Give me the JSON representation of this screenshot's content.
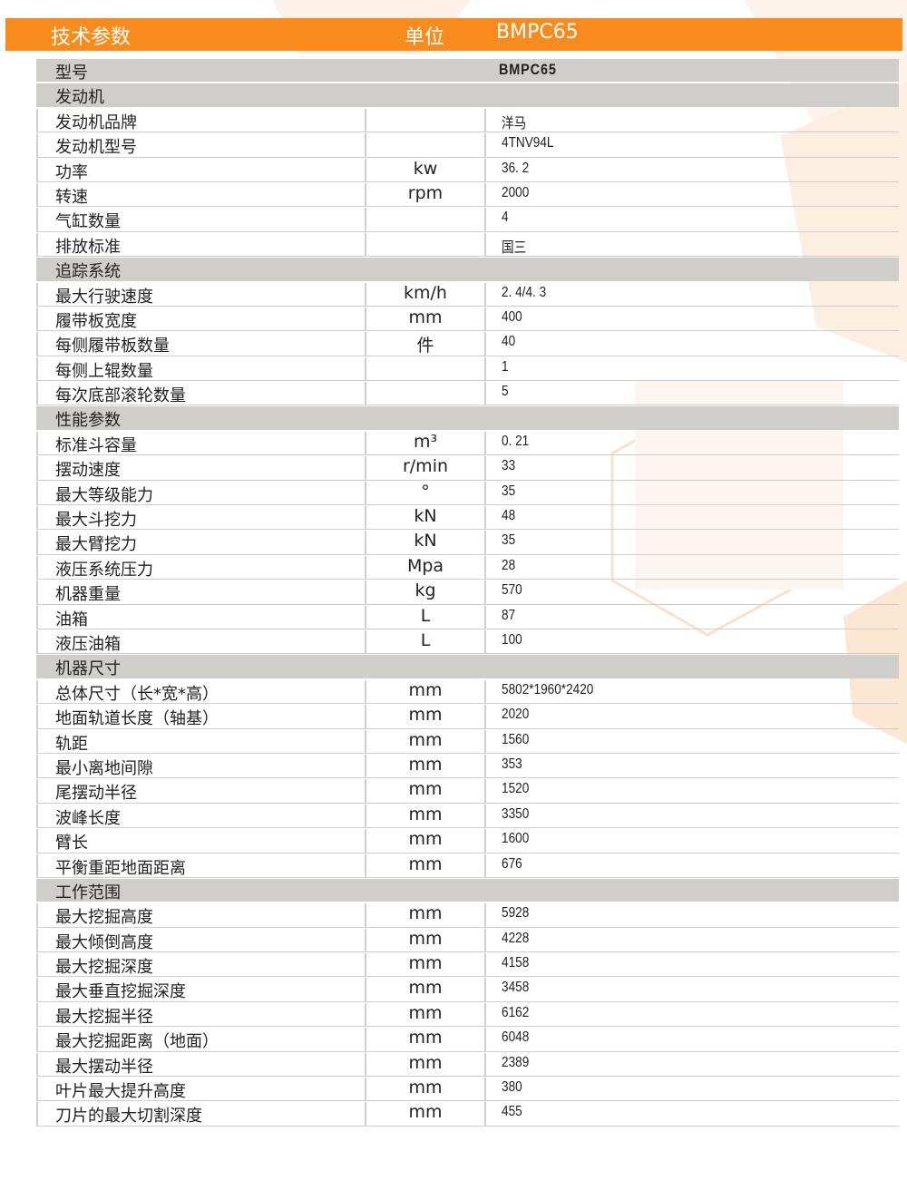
{
  "header": {
    "col1": "技术参数",
    "col2": "单位",
    "col3": "BMPC65",
    "color": "#f78b1e"
  },
  "model": {
    "label": "型号",
    "value": "BMPC65"
  },
  "sections": [
    {
      "title": "发动机",
      "rows": [
        {
          "name": "发动机品牌",
          "unit": "",
          "value": "洋马"
        },
        {
          "name": "发动机型号",
          "unit": "",
          "value": "4TNV94L"
        },
        {
          "name": "功率",
          "unit": "kw",
          "value": "36. 2"
        },
        {
          "name": "转速",
          "unit": "rpm",
          "value": "2000"
        },
        {
          "name": "气缸数量",
          "unit": "",
          "value": "4"
        },
        {
          "name": "排放标准",
          "unit": "",
          "value": "国三"
        }
      ]
    },
    {
      "title": "追踪系统",
      "rows": [
        {
          "name": "最大行驶速度",
          "unit": "km/h",
          "value": "2. 4/4. 3"
        },
        {
          "name": "履带板宽度",
          "unit": "mm",
          "value": "400"
        },
        {
          "name": "每侧履带板数量",
          "unit": "件",
          "value": "40"
        },
        {
          "name": "每侧上辊数量",
          "unit": "",
          "value": "1"
        },
        {
          "name": "每次底部滚轮数量",
          "unit": "",
          "value": "5"
        }
      ]
    },
    {
      "title": "性能参数",
      "rows": [
        {
          "name": "标准斗容量",
          "unit": "m³",
          "value": "0. 21"
        },
        {
          "name": "摆动速度",
          "unit": "r/min",
          "value": "33"
        },
        {
          "name": "最大等级能力",
          "unit": "°",
          "value": "35"
        },
        {
          "name": "最大斗挖力",
          "unit": "kN",
          "value": "48"
        },
        {
          "name": "最大臂挖力",
          "unit": "kN",
          "value": "35"
        },
        {
          "name": "液压系统压力",
          "unit": "Mpa",
          "value": "28"
        },
        {
          "name": "机器重量",
          "unit": "kg",
          "value": "570"
        },
        {
          "name": "油箱",
          "unit": "L",
          "value": "87"
        },
        {
          "name": "液压油箱",
          "unit": "L",
          "value": "100"
        }
      ]
    },
    {
      "title": "机器尺寸",
      "rows": [
        {
          "name": "总体尺寸（长*宽*高）",
          "unit": "mm",
          "value": "5802*1960*2420"
        },
        {
          "name": "地面轨道长度（轴基）",
          "unit": "mm",
          "value": "2020"
        },
        {
          "name": "轨距",
          "unit": "mm",
          "value": "1560"
        },
        {
          "name": "最小离地间隙",
          "unit": "mm",
          "value": "353"
        },
        {
          "name": "尾摆动半径",
          "unit": "mm",
          "value": "1520"
        },
        {
          "name": "波峰长度",
          "unit": "mm",
          "value": "3350"
        },
        {
          "name": "臂长",
          "unit": "mm",
          "value": "1600"
        },
        {
          "name": "平衡重距地面距离",
          "unit": "mm",
          "value": "676"
        }
      ]
    },
    {
      "title": "工作范围",
      "rows": [
        {
          "name": "最大挖掘高度",
          "unit": "mm",
          "value": "5928"
        },
        {
          "name": "最大倾倒高度",
          "unit": "mm",
          "value": "4228"
        },
        {
          "name": "最大挖掘深度",
          "unit": "mm",
          "value": "4158"
        },
        {
          "name": "最大垂直挖掘深度",
          "unit": "mm",
          "value": "3458"
        },
        {
          "name": "最大挖掘半径",
          "unit": "mm",
          "value": "6162"
        },
        {
          "name": "最大挖掘距离（地面）",
          "unit": "mm",
          "value": "6048"
        },
        {
          "name": "最大摆动半径",
          "unit": "mm",
          "value": "2389"
        },
        {
          "name": "叶片最大提升高度",
          "unit": "mm",
          "value": "380"
        },
        {
          "name": "刀片的最大切割深度",
          "unit": "mm",
          "value": "455"
        }
      ]
    }
  ]
}
